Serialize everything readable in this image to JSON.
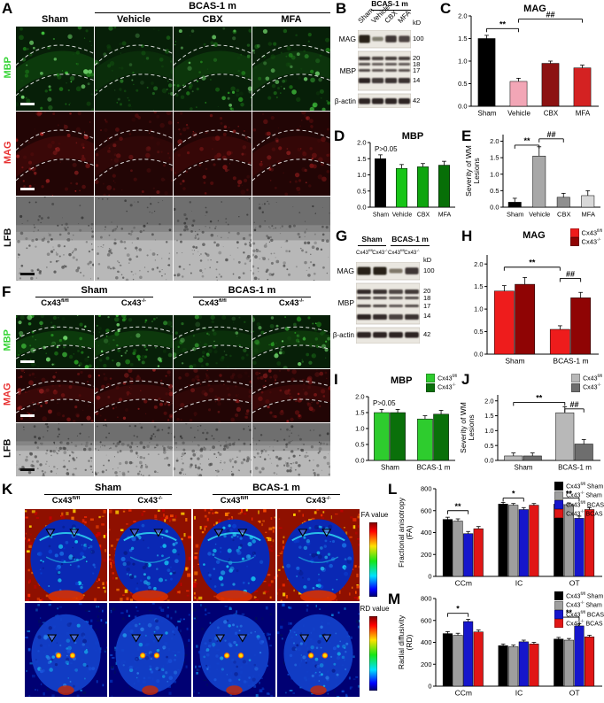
{
  "panel_labels": [
    "A",
    "B",
    "C",
    "D",
    "E",
    "F",
    "G",
    "H",
    "I",
    "J",
    "K",
    "L",
    "M"
  ],
  "panelA": {
    "label": "A",
    "group_header": "BCAS-1 m",
    "col_headers": [
      "Sham",
      "Vehicle",
      "CBX",
      "MFA"
    ],
    "row_labels": [
      {
        "text": "MBP",
        "color": "#35d435"
      },
      {
        "text": "MAG",
        "color": "#e83030"
      },
      {
        "text": "LFB",
        "color": "#111111"
      }
    ]
  },
  "panelB": {
    "label": "B",
    "group_header": "BCAS-1 m",
    "lane_labels": [
      "Sham",
      "Vehicle",
      "CBX",
      "MFA"
    ],
    "protein_labels": [
      "MAG",
      "MBP",
      "β-actin"
    ],
    "kd_header": "kD",
    "kd_mag": "100",
    "kd_mbp": [
      "20",
      "18",
      "17",
      "14"
    ],
    "kd_actin": "42",
    "mag_intensity": [
      1,
      0.3,
      0.8,
      0.7
    ],
    "mbp_intensity": [
      1,
      0.85,
      0.9,
      0.9
    ],
    "actin_intensity": [
      1,
      1,
      1,
      1
    ]
  },
  "panelF": {
    "label": "F",
    "group_headers": [
      "Sham",
      "BCAS-1 m"
    ],
    "col_headers": [
      {
        "base": "Cx43",
        "sup": "fl/fl"
      },
      {
        "base": "Cx43",
        "sup": "-/-"
      },
      {
        "base": "Cx43",
        "sup": "fl/fl"
      },
      {
        "base": "Cx43",
        "sup": "-/-"
      }
    ],
    "row_labels": [
      {
        "text": "MBP",
        "color": "#35d435"
      },
      {
        "text": "MAG",
        "color": "#e83030"
      },
      {
        "text": "LFB",
        "color": "#111111"
      }
    ]
  },
  "panelG": {
    "label": "G",
    "group_headers": [
      "Sham",
      "BCAS-1 m"
    ],
    "lane_labels": [
      {
        "base": "Cx43",
        "sup": "fl/fl"
      },
      {
        "base": "Cx43",
        "sup": "-/-"
      },
      {
        "base": "Cx43",
        "sup": "fl/fl"
      },
      {
        "base": "Cx43",
        "sup": "-/-"
      }
    ],
    "protein_labels": [
      "MAG",
      "MBP",
      "β-actin"
    ],
    "kd_header": "kD",
    "kd_mag": "100",
    "kd_mbp": [
      "20",
      "18",
      "17",
      "14"
    ],
    "kd_actin": "42",
    "mag_intensity": [
      1,
      1,
      0.35,
      0.8
    ],
    "mbp_intensity": [
      1,
      0.95,
      0.8,
      0.9
    ],
    "actin_intensity": [
      1,
      1,
      1,
      1
    ]
  },
  "panelK": {
    "label": "K",
    "group_headers": [
      "Sham",
      "BCAS-1 m"
    ],
    "col_headers": [
      {
        "base": "Cx43",
        "sup": "fl/fl"
      },
      {
        "base": "Cx43",
        "sup": "-/-"
      },
      {
        "base": "Cx43",
        "sup": "fl/fl"
      },
      {
        "base": "Cx43",
        "sup": "-/-"
      }
    ],
    "row_labels": [
      "FA value",
      "RD value"
    ]
  },
  "chart_data": [
    {
      "id": "C",
      "type": "bar",
      "title": "MAG",
      "categories": [
        "Sham",
        "Vehicle",
        "CBX",
        "MFA"
      ],
      "values": [
        1.5,
        0.55,
        0.95,
        0.85
      ],
      "errors": [
        0.07,
        0.07,
        0.05,
        0.06
      ],
      "colors": [
        "#000000",
        "#f2a6b6",
        "#8c1212",
        "#d42222"
      ],
      "ylim": [
        0,
        2.0
      ],
      "yticks": [
        0,
        0.5,
        1,
        1.5,
        2
      ],
      "tick_decimals": 1,
      "sig": [
        {
          "a": 0,
          "b": 1,
          "y": 1.72,
          "label": "**"
        },
        {
          "a": 1,
          "b": 3,
          "y": 1.93,
          "label": "##"
        }
      ]
    },
    {
      "id": "D",
      "type": "bar",
      "title": "MBP",
      "note": "P>0.05",
      "categories": [
        "Sham",
        "Vehicle",
        "CBX",
        "MFA"
      ],
      "values": [
        1.5,
        1.2,
        1.25,
        1.3
      ],
      "errors": [
        0.12,
        0.12,
        0.1,
        0.12
      ],
      "colors": [
        "#000000",
        "#17c517",
        "#0fa50f",
        "#076f07"
      ],
      "ylim": [
        0,
        2.0
      ],
      "yticks": [
        0,
        0.5,
        1,
        1.5,
        2
      ],
      "tick_decimals": 1
    },
    {
      "id": "E",
      "type": "bar",
      "ylabel_lines": [
        "Severity of WM",
        "Lesions"
      ],
      "categories": [
        "Sham",
        "Vehicle",
        "CBX",
        "MFA"
      ],
      "values": [
        0.15,
        1.55,
        0.3,
        0.35
      ],
      "errors": [
        0.12,
        0.28,
        0.12,
        0.15
      ],
      "colors": [
        "#000000",
        "#a8a8a8",
        "#8f8f8f",
        "#d9d9d9"
      ],
      "ylim": [
        0,
        2.2
      ],
      "yticks": [
        0,
        0.5,
        1,
        1.5,
        2
      ],
      "tick_decimals": 1,
      "sig": [
        {
          "a": 0,
          "b": 1,
          "y": 1.88,
          "label": "**"
        },
        {
          "a": 1,
          "b": 2,
          "y": 2.07,
          "label": "##"
        }
      ]
    },
    {
      "id": "H",
      "type": "bar",
      "title": "MAG",
      "categories": [
        "Sham",
        "BCAS-1 m"
      ],
      "series": [
        {
          "base": "Cx43",
          "sup": "fl/fl",
          "color": "#ee1c1c",
          "values": [
            1.4,
            0.55
          ],
          "errors": [
            0.12,
            0.08
          ]
        },
        {
          "base": "Cx43",
          "sup": "-/-",
          "color": "#8f0404",
          "values": [
            1.55,
            1.25
          ],
          "errors": [
            0.15,
            0.12
          ]
        }
      ],
      "ylim": [
        0,
        2.2
      ],
      "yticks": [
        0,
        0.5,
        1,
        1.5,
        2
      ],
      "tick_decimals": 1,
      "sig": [
        {
          "a": 0,
          "b": 2,
          "y": 1.93,
          "label": "**"
        },
        {
          "a": 2,
          "b": 3,
          "y": 1.68,
          "label": "##"
        }
      ]
    },
    {
      "id": "I",
      "type": "bar",
      "title": "MBP",
      "note": "P>0.05",
      "categories": [
        "Sham",
        "BCAS-1 m"
      ],
      "series": [
        {
          "base": "Cx43",
          "sup": "fl/fl",
          "color": "#2ecc2e",
          "values": [
            1.5,
            1.3
          ],
          "errors": [
            0.1,
            0.1
          ]
        },
        {
          "base": "Cx43",
          "sup": "-/-",
          "color": "#0a700a",
          "values": [
            1.5,
            1.45
          ],
          "errors": [
            0.1,
            0.12
          ]
        }
      ],
      "ylim": [
        0,
        2.0
      ],
      "yticks": [
        0,
        0.5,
        1,
        1.5,
        2
      ],
      "tick_decimals": 1
    },
    {
      "id": "J",
      "type": "bar",
      "ylabel_lines": [
        "Severity of WM",
        "Lesions"
      ],
      "categories": [
        "Sham",
        "BCAS-1 m"
      ],
      "series": [
        {
          "base": "Cx43",
          "sup": "fl/fl",
          "color": "#b8b8b8",
          "values": [
            0.15,
            1.6
          ],
          "errors": [
            0.1,
            0.2
          ]
        },
        {
          "base": "Cx43",
          "sup": "-/-",
          "color": "#6e6e6e",
          "values": [
            0.15,
            0.55
          ],
          "errors": [
            0.1,
            0.15
          ]
        }
      ],
      "ylim": [
        0,
        2.2
      ],
      "yticks": [
        0,
        0.5,
        1,
        1.5,
        2
      ],
      "tick_decimals": 1,
      "sig": [
        {
          "a": 0,
          "b": 2,
          "y": 1.95,
          "label": "**"
        },
        {
          "a": 2,
          "b": 3,
          "y": 1.73,
          "label": "##"
        }
      ]
    },
    {
      "id": "L",
      "type": "bar",
      "ylabel_lines": [
        "Fractional anisotropy",
        "(FA)"
      ],
      "categories": [
        "CCm",
        "IC",
        "OT"
      ],
      "series": [
        {
          "base": "Cx43",
          "sup": "fl/fl",
          "rest": " Sham",
          "color": "#000000",
          "values": [
            520,
            660,
            660
          ],
          "errors": [
            20,
            15,
            15
          ]
        },
        {
          "base": "Cx43",
          "sup": "-/-",
          "rest": " Sham",
          "color": "#9e9e9e",
          "values": [
            505,
            650,
            655
          ],
          "errors": [
            20,
            15,
            15
          ]
        },
        {
          "base": "Cx43",
          "sup": "fl/fl",
          "rest": " BCAS",
          "color": "#1616cc",
          "values": [
            390,
            610,
            530
          ],
          "errors": [
            20,
            18,
            20
          ]
        },
        {
          "base": "Cx43",
          "sup": "-/-",
          "rest": " BCAS",
          "color": "#e01616",
          "values": [
            435,
            650,
            610
          ],
          "errors": [
            20,
            15,
            18
          ]
        }
      ],
      "ylim": [
        0,
        800
      ],
      "yticks": [
        0,
        200,
        400,
        600,
        800
      ],
      "tick_decimals": 0,
      "sig": [
        {
          "a": 0,
          "b": 2,
          "y": 600,
          "label": "**"
        },
        {
          "a": 4,
          "b": 6,
          "y": 715,
          "label": "*"
        },
        {
          "a": 8,
          "b": 10,
          "y": 715,
          "label": "**"
        }
      ]
    },
    {
      "id": "M",
      "type": "bar",
      "ylabel_lines": [
        "Radial diffusivity",
        "(RD)"
      ],
      "categories": [
        "CCm",
        "IC",
        "OT"
      ],
      "series": [
        {
          "base": "Cx43",
          "sup": "fl/fl",
          "rest": " Sham",
          "color": "#000000",
          "values": [
            480,
            370,
            430
          ],
          "errors": [
            18,
            15,
            15
          ]
        },
        {
          "base": "Cx43",
          "sup": "-/-",
          "rest": " Sham",
          "color": "#9e9e9e",
          "values": [
            465,
            360,
            420
          ],
          "errors": [
            18,
            15,
            15
          ]
        },
        {
          "base": "Cx43",
          "sup": "fl/fl",
          "rest": " BCAS",
          "color": "#1616cc",
          "values": [
            590,
            405,
            550
          ],
          "errors": [
            20,
            15,
            20
          ]
        },
        {
          "base": "Cx43",
          "sup": "-/-",
          "rest": " BCAS",
          "color": "#e01616",
          "values": [
            495,
            385,
            450
          ],
          "errors": [
            18,
            15,
            15
          ]
        }
      ],
      "ylim": [
        0,
        800
      ],
      "yticks": [
        0,
        200,
        400,
        600,
        800
      ],
      "tick_decimals": 0,
      "sig": [
        {
          "a": 0,
          "b": 2,
          "y": 665,
          "label": "*"
        },
        {
          "a": 8,
          "b": 10,
          "y": 630,
          "label": "**"
        }
      ]
    }
  ]
}
